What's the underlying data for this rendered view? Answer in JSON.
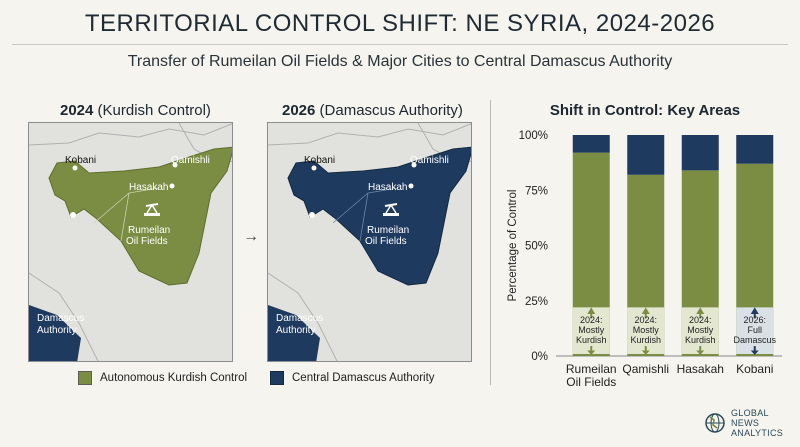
{
  "header": {
    "title": "TERRITORIAL CONTROL SHIFT: NE SYRIA, 2024-2026",
    "subtitle": "Transfer of Rumeilan Oil Fields & Major Cities to Central Damascus Authority"
  },
  "maps": {
    "left": {
      "year": "2024",
      "label": "(Kurdish Control)",
      "fill_color": "#7b8d42",
      "places": {
        "kobani": "Kobani",
        "qamishli": "Qamishli",
        "hasakah": "Hasakah",
        "rumeilan": "Rumeilan",
        "oil_fields": "Oil Fields",
        "damascus": "Damascus",
        "authority": "Authority"
      }
    },
    "right": {
      "year": "2026",
      "label": "(Damascus Authority)",
      "fill_color": "#1e3a5f",
      "places": {
        "kobani": "Kobani",
        "qamishli": "Qamishli",
        "hasakah": "Hasakah",
        "rumeilan": "Rumeilan",
        "oil_fields": "Oil Fields",
        "damascus": "Damascus",
        "authority": "Authority"
      }
    },
    "arrow": "→",
    "legend": [
      {
        "label": "Autonomous Kurdish Control",
        "color": "#7b8d42"
      },
      {
        "label": "Central Damascus Authority",
        "color": "#1e3a5f"
      }
    ]
  },
  "chart_data": {
    "type": "bar",
    "stacked": true,
    "title": "Shift in Control: Key Areas",
    "ylabel": "Percentage of Control",
    "xlabel": "",
    "ylim": [
      0,
      100
    ],
    "yticks": [
      "0%",
      "25%",
      "50%",
      "75%",
      "100%"
    ],
    "ytick_values": [
      0,
      25,
      50,
      75,
      100
    ],
    "categories": [
      [
        "Rumeilan",
        "Oil Fields"
      ],
      [
        "Qamishli"
      ],
      [
        "Hasakah"
      ],
      [
        "Kobani"
      ]
    ],
    "series": [
      {
        "name": "Autonomous Kurdish Control",
        "color": "#7b8d42",
        "values": [
          92,
          82,
          84,
          87
        ]
      },
      {
        "name": "Central Damascus Authority",
        "color": "#1e3a5f",
        "values": [
          8,
          18,
          16,
          13
        ]
      }
    ],
    "annotations": [
      {
        "lines": [
          "2024:",
          "Mostly",
          "Kurdish"
        ],
        "direction": "up-down"
      },
      {
        "lines": [
          "2024:",
          "Mostly",
          "Kurdish"
        ],
        "direction": "up-down"
      },
      {
        "lines": [
          "2024:",
          "Mostly",
          "Kurdish"
        ],
        "direction": "up-down"
      },
      {
        "lines": [
          "2026:",
          "Full",
          "Damascus"
        ],
        "direction": "up-down-blue"
      }
    ],
    "grid": false
  },
  "logo": {
    "line1": "GLOBAL",
    "line2": "NEWS",
    "line3": "ANALYTICS"
  }
}
